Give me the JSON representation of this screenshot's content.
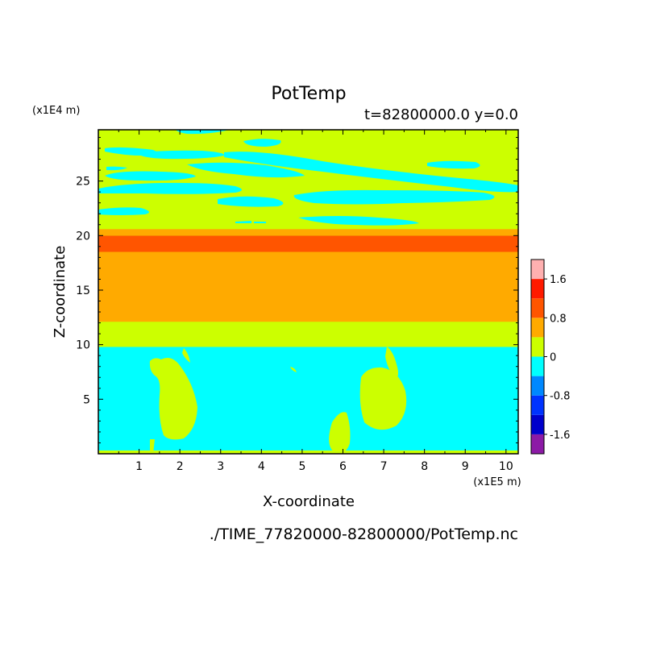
{
  "chart_data": {
    "type": "heatmap",
    "title": "PotTemp",
    "subtitle": "t=82800000.0 y=0.0",
    "xlabel": "X-coordinate",
    "ylabel": "Z-coordinate",
    "x_scale_label": "(x1E5 m)",
    "y_scale_label": "(x1E4 m)",
    "footer": "./TIME_77820000-82800000/PotTemp.nc",
    "xlim": [
      0,
      10.3
    ],
    "ylim": [
      0,
      29.7
    ],
    "x_ticks": [
      1,
      2,
      3,
      4,
      5,
      6,
      7,
      8,
      9,
      10
    ],
    "y_ticks": [
      5,
      10,
      15,
      20,
      25
    ],
    "colorbar": {
      "levels": [
        -2.0,
        -1.6,
        -1.2,
        -0.8,
        -0.4,
        0,
        0.4,
        0.8,
        1.2,
        1.6,
        2.0
      ],
      "colors": [
        "#8c1aa6",
        "#0000cc",
        "#0033ff",
        "#0088ff",
        "#00ffff",
        "#ccff00",
        "#ffaa00",
        "#ff5500",
        "#ff1a00",
        "#ffb0b0"
      ],
      "tick_labels": [
        "-1.6",
        "-0.8",
        "0",
        "0.8",
        "1.6"
      ]
    },
    "bands": [
      {
        "z_min": 0.3,
        "z_max": 9.8,
        "range": "-0.4 to 0",
        "color": "#00ffff"
      },
      {
        "z_min": 9.8,
        "z_max": 12.1,
        "range": "0 to 0.4",
        "color": "#ccff00"
      },
      {
        "z_min": 12.1,
        "z_max": 18.5,
        "range": "0.4 to 0.8",
        "color": "#ffaa00"
      },
      {
        "z_min": 18.5,
        "z_max": 20.0,
        "range": "0.8 to 1.2",
        "color": "#ff5500"
      },
      {
        "z_min": 20.0,
        "z_max": 20.6,
        "range": "0.4 to 0.8",
        "color": "#ffaa00"
      },
      {
        "z_min": 20.6,
        "z_max": 29.7,
        "range": "0 to 0.4",
        "color": "#ccff00"
      }
    ]
  }
}
